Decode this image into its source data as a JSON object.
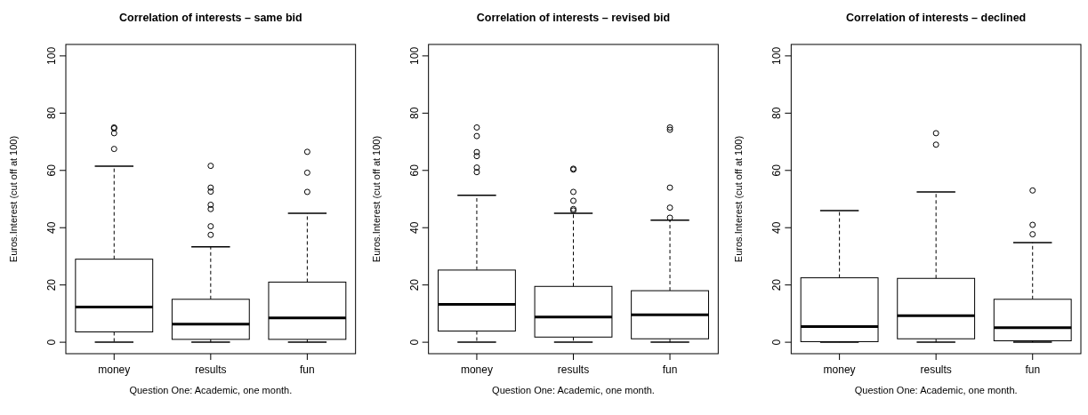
{
  "chart_data": [
    {
      "type": "box",
      "title": "Correlation of interests – same bid",
      "xlabel": "Question One: Academic, one month.",
      "ylabel": "Euros.Interest (cut off at 100)",
      "categories": [
        "money",
        "results",
        "fun"
      ],
      "ylim": [
        -4,
        104
      ],
      "yticks": [
        0,
        20,
        40,
        60,
        80,
        100
      ],
      "grid": false,
      "boxes": [
        {
          "low": 0,
          "q1": 3.6,
          "median": 12.3,
          "q3": 29,
          "high": 61.5,
          "outliers": [
            75,
            74.7,
            73,
            67.5
          ]
        },
        {
          "low": 0,
          "q1": 1,
          "median": 6.3,
          "q3": 15,
          "high": 33.3,
          "outliers": [
            61.6,
            54,
            52.6,
            48,
            46.5,
            40.5,
            37.5
          ]
        },
        {
          "low": 0,
          "q1": 1,
          "median": 8.5,
          "q3": 21,
          "high": 45,
          "outliers": [
            66.5,
            59.2,
            52.5
          ]
        }
      ]
    },
    {
      "type": "box",
      "title": "Correlation of interests – revised bid",
      "xlabel": "Question One: Academic, one month.",
      "ylabel": "Euros.Interest (cut off at 100)",
      "categories": [
        "money",
        "results",
        "fun"
      ],
      "ylim": [
        -4,
        104
      ],
      "yticks": [
        0,
        20,
        40,
        60,
        80,
        100
      ],
      "grid": false,
      "boxes": [
        {
          "low": 0,
          "q1": 3.9,
          "median": 13.2,
          "q3": 25.2,
          "high": 51.3,
          "outliers": [
            75,
            72,
            66.4,
            65,
            61,
            59.4
          ]
        },
        {
          "low": 0,
          "q1": 1.8,
          "median": 8.8,
          "q3": 19.5,
          "high": 45,
          "outliers": [
            60.6,
            60.3,
            52.5,
            49.4,
            46.5,
            46
          ]
        },
        {
          "low": 0,
          "q1": 1.2,
          "median": 9.6,
          "q3": 18,
          "high": 42.6,
          "outliers": [
            75,
            74.2,
            54,
            47,
            43.5
          ]
        }
      ]
    },
    {
      "type": "box",
      "title": "Correlation of interests – declined",
      "xlabel": "Question One: Academic, one month.",
      "ylabel": "Euros.Interest (cut off at 100)",
      "categories": [
        "money",
        "results",
        "fun"
      ],
      "ylim": [
        -4,
        104
      ],
      "yticks": [
        0,
        20,
        40,
        60,
        80,
        100
      ],
      "grid": false,
      "boxes": [
        {
          "low": 0,
          "q1": 0.2,
          "median": 5.5,
          "q3": 22.5,
          "high": 46
        },
        {
          "low": 0,
          "q1": 1.2,
          "median": 9.3,
          "q3": 22.3,
          "high": 52.5,
          "outliers": [
            73,
            69
          ]
        },
        {
          "low": 0,
          "q1": 0.5,
          "median": 5.1,
          "q3": 15,
          "high": 34.8,
          "outliers": [
            53,
            41,
            37.7
          ]
        }
      ]
    }
  ]
}
